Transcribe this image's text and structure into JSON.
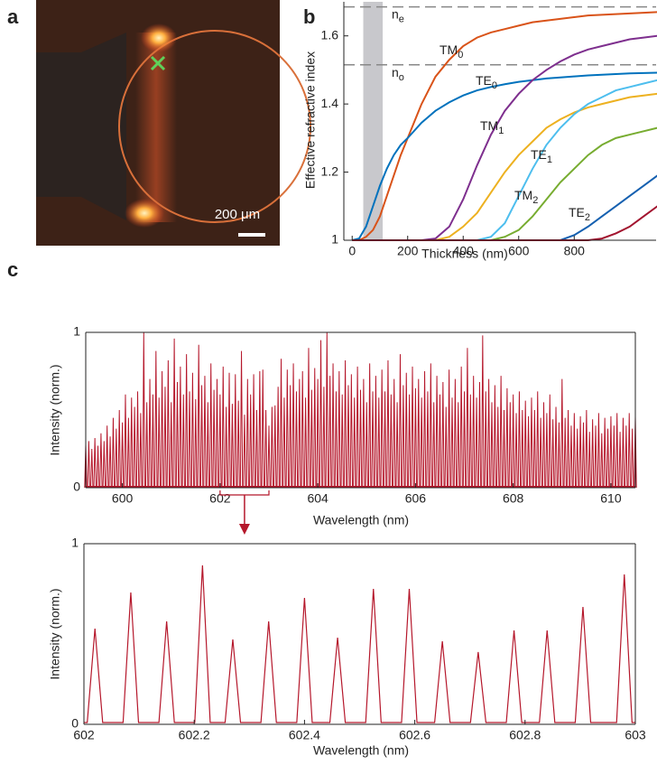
{
  "panels": [
    "a",
    "b",
    "c"
  ],
  "image": {
    "scale_bar": "200 μm"
  },
  "chart_data": [
    {
      "type": "line",
      "xlabel": "Thickness (nm)",
      "ylabel": "Effective refractive index",
      "x": [
        0,
        25,
        50,
        75,
        100,
        125,
        150,
        175,
        200,
        250,
        300,
        350,
        400,
        450,
        500,
        550,
        600,
        650,
        700,
        750,
        800,
        850,
        900,
        950,
        1000,
        1050,
        1100
      ],
      "series": [
        {
          "name": "TM0",
          "color": "#d95319",
          "values": [
            1.0,
            1.0,
            1.01,
            1.03,
            1.07,
            1.13,
            1.19,
            1.25,
            1.3,
            1.4,
            1.48,
            1.53,
            1.57,
            1.595,
            1.61,
            1.62,
            1.63,
            1.64,
            1.645,
            1.65,
            1.655,
            1.66,
            1.662,
            1.664,
            1.666,
            1.668,
            1.67
          ]
        },
        {
          "name": "TE0",
          "color": "#0072bd",
          "values": [
            1.0,
            1.005,
            1.04,
            1.1,
            1.16,
            1.21,
            1.25,
            1.28,
            1.3,
            1.345,
            1.38,
            1.405,
            1.425,
            1.44,
            1.45,
            1.458,
            1.465,
            1.47,
            1.475,
            1.478,
            1.481,
            1.484,
            1.486,
            1.488,
            1.49,
            1.491,
            1.492
          ]
        },
        {
          "name": "TM1",
          "color": "#7e2f8e",
          "values": [
            1.0,
            1.0,
            1.0,
            1.0,
            1.0,
            1.0,
            1.0,
            1.0,
            1.0,
            1.0,
            1.005,
            1.04,
            1.12,
            1.22,
            1.31,
            1.38,
            1.43,
            1.47,
            1.5,
            1.525,
            1.545,
            1.56,
            1.57,
            1.58,
            1.59,
            1.595,
            1.6
          ]
        },
        {
          "name": "TE1",
          "color": "#edb120",
          "values": [
            1.0,
            1.0,
            1.0,
            1.0,
            1.0,
            1.0,
            1.0,
            1.0,
            1.0,
            1.0,
            1.0,
            1.01,
            1.04,
            1.08,
            1.14,
            1.2,
            1.25,
            1.29,
            1.33,
            1.355,
            1.375,
            1.39,
            1.4,
            1.41,
            1.42,
            1.425,
            1.43
          ]
        },
        {
          "name": "TM2",
          "color": "#4dbeee",
          "values": [
            1.0,
            1.0,
            1.0,
            1.0,
            1.0,
            1.0,
            1.0,
            1.0,
            1.0,
            1.0,
            1.0,
            1.0,
            1.0,
            1.0,
            1.01,
            1.05,
            1.13,
            1.21,
            1.28,
            1.33,
            1.37,
            1.4,
            1.42,
            1.44,
            1.45,
            1.46,
            1.47
          ]
        },
        {
          "name": "TE2",
          "color": "#77ac30",
          "values": [
            1.0,
            1.0,
            1.0,
            1.0,
            1.0,
            1.0,
            1.0,
            1.0,
            1.0,
            1.0,
            1.0,
            1.0,
            1.0,
            1.0,
            1.0,
            1.01,
            1.03,
            1.07,
            1.12,
            1.17,
            1.21,
            1.25,
            1.28,
            1.3,
            1.31,
            1.32,
            1.33
          ]
        },
        {
          "color": "#1560b0",
          "values": [
            1.0,
            1.0,
            1.0,
            1.0,
            1.0,
            1.0,
            1.0,
            1.0,
            1.0,
            1.0,
            1.0,
            1.0,
            1.0,
            1.0,
            1.0,
            1.0,
            1.0,
            1.0,
            1.0,
            1.0,
            1.015,
            1.04,
            1.07,
            1.1,
            1.13,
            1.16,
            1.19
          ]
        },
        {
          "color": "#a2142f",
          "values": [
            1.0,
            1.0,
            1.0,
            1.0,
            1.0,
            1.0,
            1.0,
            1.0,
            1.0,
            1.0,
            1.0,
            1.0,
            1.0,
            1.0,
            1.0,
            1.0,
            1.0,
            1.0,
            1.0,
            1.0,
            1.0,
            1.0,
            1.005,
            1.02,
            1.04,
            1.07,
            1.1
          ]
        }
      ],
      "reference_lines": [
        {
          "label": "ne",
          "value": 1.685
        },
        {
          "label": "no",
          "value": 1.515
        }
      ],
      "shaded_band": [
        40,
        110
      ],
      "xlim": [
        -30,
        1095
      ],
      "ylim": [
        1,
        1.7
      ],
      "xticks": [
        0,
        200,
        400,
        600,
        800
      ],
      "yticks": [
        1,
        1.2,
        1.4,
        1.6
      ]
    },
    {
      "type": "spectrum",
      "xlabel": "Wavelength (nm)",
      "ylabel": "Intensity (norm.)",
      "color": "#b5172b",
      "x": [
        599.25,
        599.3125,
        599.375,
        599.4375,
        599.5,
        599.5625,
        599.625,
        599.6875,
        599.75,
        599.8125,
        599.875,
        599.9375,
        600,
        600.0625,
        600.125,
        600.1875,
        600.25,
        600.3125,
        600.375,
        600.4375,
        600.5,
        600.5625,
        600.625,
        600.6875,
        600.75,
        600.8125,
        600.875,
        600.9375,
        601,
        601.0625,
        601.125,
        601.1875,
        601.25,
        601.3125,
        601.375,
        601.4375,
        601.5,
        601.5625,
        601.625,
        601.6875,
        601.75,
        601.8125,
        601.875,
        601.9375,
        602,
        602.0625,
        602.125,
        602.1875,
        602.25,
        602.3125,
        602.375,
        602.4375,
        602.5,
        602.5625,
        602.625,
        602.6875,
        602.75,
        602.8125,
        602.875,
        602.9375,
        603,
        603.0625,
        603.125,
        603.1875,
        603.25,
        603.3125,
        603.375,
        603.4375,
        603.5,
        603.5625,
        603.625,
        603.6875,
        603.75,
        603.8125,
        603.875,
        603.9375,
        604,
        604.0625,
        604.125,
        604.1875,
        604.25,
        604.3125,
        604.375,
        604.4375,
        604.5,
        604.5625,
        604.625,
        604.6875,
        604.75,
        604.8125,
        604.875,
        604.9375,
        605,
        605.0625,
        605.125,
        605.1875,
        605.25,
        605.3125,
        605.375,
        605.4375,
        605.5,
        605.5625,
        605.625,
        605.6875,
        605.75,
        605.8125,
        605.875,
        605.9375,
        606,
        606.0625,
        606.125,
        606.1875,
        606.25,
        606.3125,
        606.375,
        606.4375,
        606.5,
        606.5625,
        606.625,
        606.6875,
        606.75,
        606.8125,
        606.875,
        606.9375,
        607,
        607.0625,
        607.125,
        607.1875,
        607.25,
        607.3125,
        607.375,
        607.4375,
        607.5,
        607.5625,
        607.625,
        607.6875,
        607.75,
        607.8125,
        607.875,
        607.9375,
        608,
        608.0625,
        608.125,
        608.1875,
        608.25,
        608.3125,
        608.375,
        608.4375,
        608.5,
        608.5625,
        608.625,
        608.6875,
        608.75,
        608.8125,
        608.875,
        608.9375,
        609,
        609.0625,
        609.125,
        609.1875,
        609.25,
        609.3125,
        609.375,
        609.4375,
        609.5,
        609.5625,
        609.625,
        609.6875,
        609.75,
        609.8125,
        609.875,
        609.9375,
        610,
        610.0625,
        610.125,
        610.1875,
        610.25,
        610.3125,
        610.375,
        610.4375,
        610.5
      ],
      "values": [
        0.28,
        0.3,
        0.25,
        0.32,
        0.27,
        0.35,
        0.3,
        0.4,
        0.33,
        0.45,
        0.38,
        0.5,
        0.42,
        0.6,
        0.45,
        0.58,
        0.52,
        0.62,
        0.48,
        1.0,
        0.55,
        0.7,
        0.6,
        0.88,
        0.58,
        0.75,
        0.65,
        0.82,
        0.55,
        0.96,
        0.68,
        0.78,
        0.6,
        0.86,
        0.62,
        0.74,
        0.57,
        0.92,
        0.66,
        0.72,
        0.55,
        0.8,
        0.63,
        0.7,
        0.6,
        0.78,
        0.52,
        0.74,
        0.54,
        0.73,
        0.56,
        0.88,
        0.47,
        0.7,
        0.6,
        0.73,
        0.5,
        0.75,
        0.76,
        0.5,
        0.4,
        0.52,
        0.53,
        0.65,
        0.83,
        0.58,
        0.76,
        0.66,
        0.8,
        0.62,
        0.7,
        0.75,
        0.58,
        0.9,
        0.63,
        0.77,
        0.7,
        0.95,
        0.65,
        1.0,
        0.72,
        0.8,
        0.62,
        0.75,
        0.6,
        0.82,
        0.66,
        0.73,
        0.58,
        0.78,
        0.63,
        0.7,
        0.55,
        0.8,
        0.62,
        0.72,
        0.58,
        0.76,
        0.62,
        0.82,
        0.6,
        0.7,
        0.55,
        0.86,
        0.66,
        0.74,
        0.6,
        0.78,
        0.64,
        0.7,
        0.58,
        0.75,
        0.62,
        0.8,
        0.55,
        0.72,
        0.6,
        0.68,
        0.52,
        0.76,
        0.58,
        0.7,
        0.55,
        0.78,
        0.62,
        0.9,
        0.6,
        0.72,
        0.58,
        0.68,
        0.98,
        0.62,
        0.7,
        0.55,
        0.66,
        0.52,
        0.72,
        0.5,
        0.64,
        0.55,
        0.6,
        0.48,
        0.62,
        0.5,
        0.56,
        0.46,
        0.58,
        0.5,
        0.62,
        0.45,
        0.55,
        0.48,
        0.6,
        0.44,
        0.52,
        0.42,
        0.7,
        0.45,
        0.5,
        0.4,
        0.48,
        0.38,
        0.46,
        0.42,
        0.5,
        0.36,
        0.44,
        0.4,
        0.48,
        0.35,
        0.45,
        0.38,
        0.46,
        0.4,
        0.48,
        0.36,
        0.45,
        0.4,
        0.48,
        0.38,
        0.46
      ],
      "xlim": [
        599.25,
        610.5
      ],
      "ylim": [
        0,
        1
      ],
      "xticks": [
        600,
        602,
        604,
        606,
        608,
        610
      ],
      "yticks": [
        0,
        1
      ]
    },
    {
      "type": "line",
      "xlabel": "Wavelength (nm)",
      "ylabel": "Intensity (norm.)",
      "x": [
        602,
        602.006,
        602.02,
        602.034,
        602.071,
        602.085,
        602.099,
        602.136,
        602.15,
        602.164,
        602.201,
        602.215,
        602.229,
        602.256,
        602.27,
        602.284,
        602.321,
        602.335,
        602.349,
        602.386,
        602.4,
        602.414,
        602.446,
        602.46,
        602.474,
        602.511,
        602.525,
        602.539,
        602.576,
        602.59,
        602.604,
        602.636,
        602.65,
        602.664,
        602.701,
        602.715,
        602.729,
        602.766,
        602.78,
        602.794,
        602.826,
        602.84,
        602.854,
        602.891,
        602.905,
        602.919,
        602.966,
        602.98,
        602.994,
        603
      ],
      "series": [
        {
          "color": "#b5172b",
          "values": [
            0.01,
            0.01,
            0.53,
            0.01,
            0.01,
            0.73,
            0.01,
            0.01,
            0.57,
            0.01,
            0.01,
            0.88,
            0.01,
            0.01,
            0.47,
            0.01,
            0.01,
            0.57,
            0.01,
            0.01,
            0.7,
            0.01,
            0.01,
            0.48,
            0.01,
            0.01,
            0.75,
            0.01,
            0.01,
            0.75,
            0.01,
            0.01,
            0.46,
            0.01,
            0.01,
            0.4,
            0.01,
            0.01,
            0.52,
            0.01,
            0.01,
            0.52,
            0.01,
            0.01,
            0.65,
            0.01,
            0.01,
            0.83,
            0.01,
            0.01
          ]
        }
      ],
      "xlim": [
        602,
        603
      ],
      "ylim": [
        0,
        1
      ],
      "xticks": [
        602,
        602.2,
        602.4,
        602.6,
        602.8,
        603
      ],
      "yticks": [
        0,
        1
      ]
    }
  ]
}
